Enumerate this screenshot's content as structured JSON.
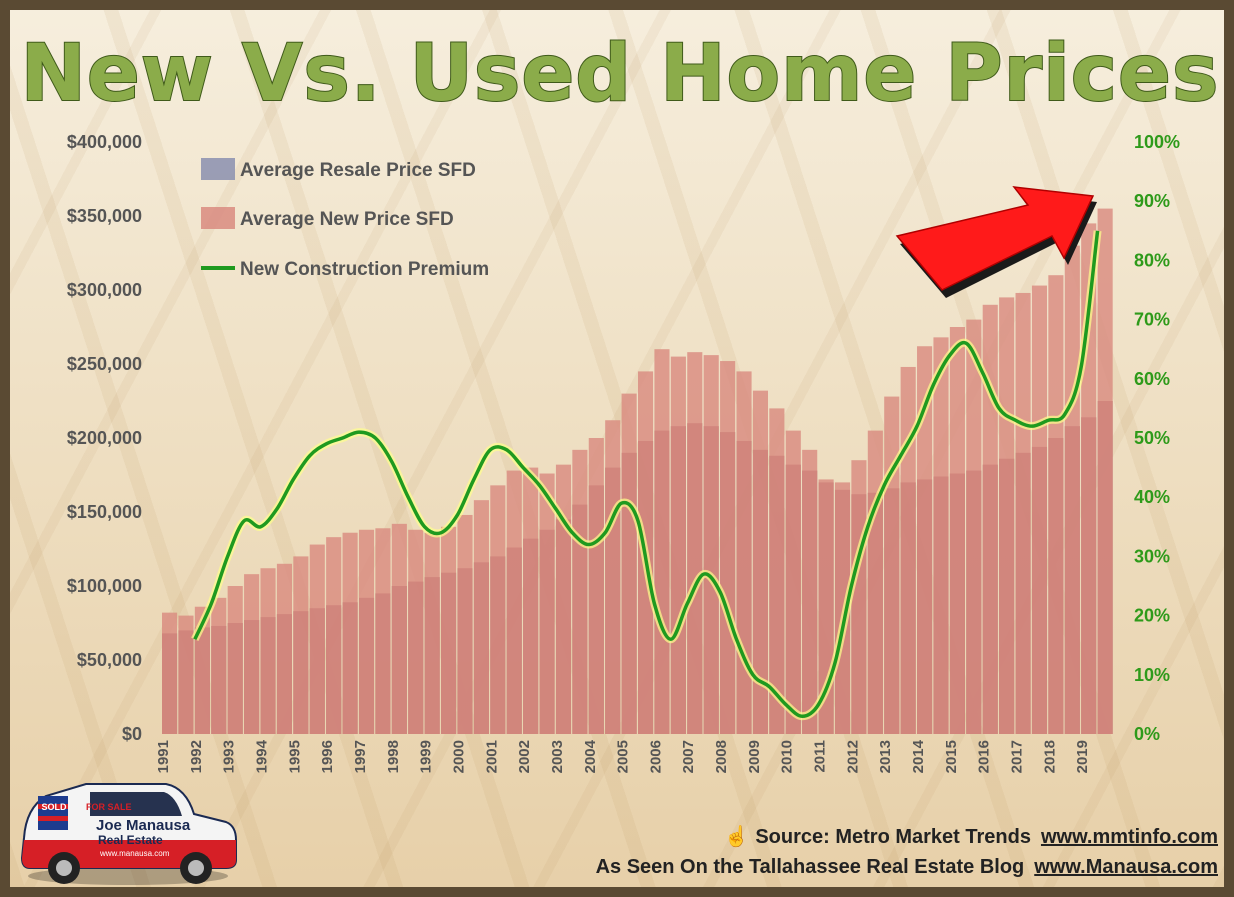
{
  "chart_data": {
    "type": "bar",
    "title": "New Vs. Used Home Prices",
    "x_tick_labels": [
      "1991",
      "1992",
      "1993",
      "1994",
      "1995",
      "1996",
      "1997",
      "1998",
      "1999",
      "2000",
      "2001",
      "2002",
      "2003",
      "2004",
      "2005",
      "2006",
      "2007",
      "2008",
      "2009",
      "2010",
      "2011",
      "2012",
      "2013",
      "2014",
      "2015",
      "2016",
      "2017",
      "2018",
      "2019"
    ],
    "left_axis": {
      "ylim": [
        0,
        400000
      ],
      "tick_values": [
        0,
        50000,
        100000,
        150000,
        200000,
        250000,
        300000,
        350000,
        400000
      ],
      "tick_labels": [
        "$0",
        "$50,000",
        "$100,000",
        "$150,000",
        "$200,000",
        "$250,000",
        "$300,000",
        "$350,000",
        "$400,000"
      ]
    },
    "right_axis": {
      "ylim": [
        0,
        1.0
      ],
      "tick_values": [
        0,
        0.1,
        0.2,
        0.3,
        0.4,
        0.5,
        0.6,
        0.7,
        0.8,
        0.9,
        1.0
      ],
      "tick_labels": [
        "0%",
        "10%",
        "20%",
        "30%",
        "40%",
        "50%",
        "60%",
        "70%",
        "80%",
        "90%",
        "100%"
      ]
    },
    "legend_position": "top-left",
    "grid": false,
    "series": [
      {
        "name": "Average Resale Price SFD",
        "type": "bar",
        "axis": "left",
        "color": "#8a8faf",
        "x": [
          1991.0,
          1991.5,
          1992.0,
          1992.5,
          1993.0,
          1993.5,
          1994.0,
          1994.5,
          1995.0,
          1995.5,
          1996.0,
          1996.5,
          1997.0,
          1997.5,
          1998.0,
          1998.5,
          1999.0,
          1999.5,
          2000.0,
          2000.5,
          2001.0,
          2001.5,
          2002.0,
          2002.5,
          2003.0,
          2003.5,
          2004.0,
          2004.5,
          2005.0,
          2005.5,
          2006.0,
          2006.5,
          2007.0,
          2007.5,
          2008.0,
          2008.5,
          2009.0,
          2009.5,
          2010.0,
          2010.5,
          2011.0,
          2011.5,
          2012.0,
          2012.5,
          2013.0,
          2013.5,
          2014.0,
          2014.5,
          2015.0,
          2015.5,
          2016.0,
          2016.5,
          2017.0,
          2017.5,
          2018.0,
          2018.5,
          2019.0,
          2019.5
        ],
        "y": [
          68000,
          70000,
          72000,
          73000,
          75000,
          77000,
          79000,
          81000,
          83000,
          85000,
          87000,
          89000,
          92000,
          95000,
          100000,
          103000,
          106000,
          109000,
          112000,
          116000,
          120000,
          126000,
          132000,
          138000,
          145000,
          155000,
          168000,
          180000,
          190000,
          198000,
          205000,
          208000,
          210000,
          208000,
          204000,
          198000,
          192000,
          188000,
          182000,
          178000,
          170000,
          165000,
          162000,
          163000,
          166000,
          170000,
          172000,
          174000,
          176000,
          178000,
          182000,
          186000,
          190000,
          194000,
          200000,
          208000,
          214000,
          225000
        ]
      },
      {
        "name": "Average New Price SFD",
        "type": "bar",
        "axis": "left",
        "color": "#d98b80",
        "x": [
          1991.0,
          1991.5,
          1992.0,
          1992.5,
          1993.0,
          1993.5,
          1994.0,
          1994.5,
          1995.0,
          1995.5,
          1996.0,
          1996.5,
          1997.0,
          1997.5,
          1998.0,
          1998.5,
          1999.0,
          1999.5,
          2000.0,
          2000.5,
          2001.0,
          2001.5,
          2002.0,
          2002.5,
          2003.0,
          2003.5,
          2004.0,
          2004.5,
          2005.0,
          2005.5,
          2006.0,
          2006.5,
          2007.0,
          2007.5,
          2008.0,
          2008.5,
          2009.0,
          2009.5,
          2010.0,
          2010.5,
          2011.0,
          2011.5,
          2012.0,
          2012.5,
          2013.0,
          2013.5,
          2014.0,
          2014.5,
          2015.0,
          2015.5,
          2016.0,
          2016.5,
          2017.0,
          2017.5,
          2018.0,
          2018.5,
          2019.0,
          2019.5
        ],
        "y": [
          82000,
          80000,
          86000,
          92000,
          100000,
          108000,
          112000,
          115000,
          120000,
          128000,
          133000,
          136000,
          138000,
          139000,
          142000,
          138000,
          136000,
          140000,
          148000,
          158000,
          168000,
          178000,
          180000,
          176000,
          182000,
          192000,
          200000,
          212000,
          230000,
          245000,
          260000,
          255000,
          258000,
          256000,
          252000,
          245000,
          232000,
          220000,
          205000,
          192000,
          172000,
          170000,
          185000,
          205000,
          228000,
          248000,
          262000,
          268000,
          275000,
          280000,
          290000,
          295000,
          298000,
          303000,
          310000,
          330000,
          345000,
          355000
        ]
      },
      {
        "name": "New Construction Premium",
        "type": "line",
        "axis": "right",
        "color": "#1f9a1f",
        "x": [
          1992.0,
          1992.5,
          1993.0,
          1993.5,
          1994.0,
          1994.5,
          1995.0,
          1995.5,
          1996.0,
          1996.5,
          1997.0,
          1997.5,
          1998.0,
          1998.5,
          1999.0,
          1999.5,
          2000.0,
          2000.5,
          2001.0,
          2001.5,
          2002.0,
          2002.5,
          2003.0,
          2003.5,
          2004.0,
          2004.5,
          2005.0,
          2005.5,
          2006.0,
          2006.5,
          2007.0,
          2007.5,
          2008.0,
          2008.5,
          2009.0,
          2009.5,
          2010.0,
          2010.5,
          2011.0,
          2011.5,
          2012.0,
          2012.5,
          2013.0,
          2013.5,
          2014.0,
          2014.5,
          2015.0,
          2015.5,
          2016.0,
          2016.5,
          2017.0,
          2017.5,
          2018.0,
          2018.5,
          2019.0,
          2019.5
        ],
        "y": [
          0.16,
          0.22,
          0.3,
          0.36,
          0.35,
          0.38,
          0.43,
          0.47,
          0.49,
          0.5,
          0.51,
          0.5,
          0.46,
          0.4,
          0.35,
          0.34,
          0.37,
          0.43,
          0.48,
          0.48,
          0.45,
          0.42,
          0.38,
          0.34,
          0.32,
          0.34,
          0.39,
          0.36,
          0.22,
          0.16,
          0.22,
          0.27,
          0.24,
          0.16,
          0.1,
          0.08,
          0.05,
          0.03,
          0.05,
          0.12,
          0.25,
          0.35,
          0.42,
          0.47,
          0.52,
          0.59,
          0.64,
          0.66,
          0.61,
          0.55,
          0.53,
          0.52,
          0.53,
          0.54,
          0.62,
          0.85
        ]
      }
    ]
  },
  "legend": {
    "resale": "Average Resale Price SFD",
    "new": "Average New Price SFD",
    "premium": "New Construction Premium"
  },
  "footer": {
    "source_text": "Source: Metro Market Trends",
    "source_url": "www.mmtinfo.com",
    "blog_text": "As Seen On the Tallahassee Real Estate Blog",
    "blog_url": "www.Manausa.com"
  },
  "logo": {
    "brand": "Joe Manausa",
    "subtitle": "Real Estate",
    "website": "www.manausa.com",
    "sign": "FOR SALE",
    "sold": "SOLD"
  },
  "icons": {
    "hand": "pointing-hand-icon",
    "arrow": "red-up-arrow-icon"
  }
}
